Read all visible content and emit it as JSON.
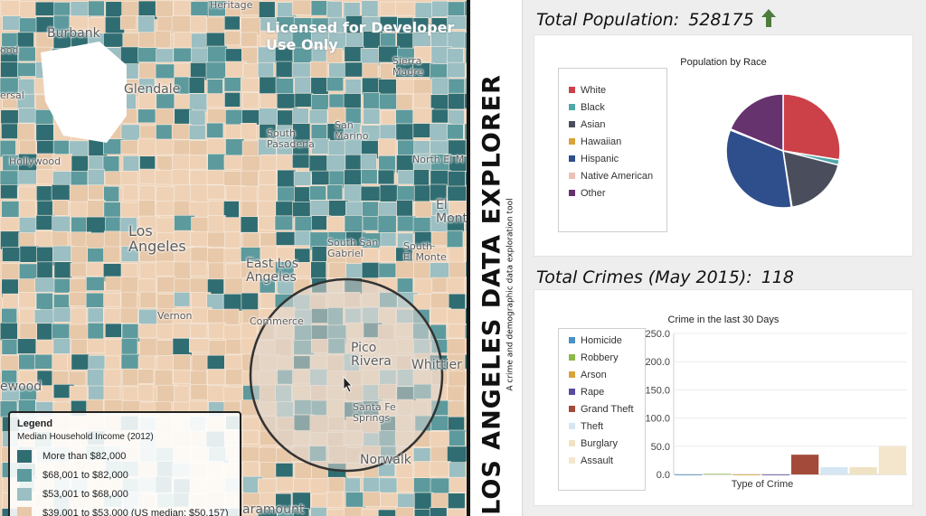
{
  "map": {
    "watermark": "Licensed for Developer\nUse Only",
    "places": [
      {
        "name": "Burbank",
        "text": "Burbank"
      },
      {
        "name": "Glendale",
        "text": "Glendale"
      },
      {
        "name": "Hollywood",
        "text": "Hollywood"
      },
      {
        "name": "Los Angeles",
        "text": "Los\nAngeles"
      },
      {
        "name": "Vernon",
        "text": "Vernon"
      },
      {
        "name": "East Los Angeles",
        "text": "East Los\nAngeles"
      },
      {
        "name": "Commerce",
        "text": "Commerce"
      },
      {
        "name": "Pico Rivera",
        "text": "Pico\nRivera"
      },
      {
        "name": "Whittier",
        "text": "Whittier"
      },
      {
        "name": "Santa Fe Springs",
        "text": "Santa Fe\nSprings"
      },
      {
        "name": "Norwalk",
        "text": "Norwalk"
      },
      {
        "name": "South Pasadena",
        "text": "South\nPasadena"
      },
      {
        "name": "San Marino",
        "text": "San\nMarino"
      },
      {
        "name": "Sierra Madre",
        "text": "Sierra\nMadre"
      },
      {
        "name": "North El Monte",
        "text": "North El M"
      },
      {
        "name": "El Monte",
        "text": "El\nMonte"
      },
      {
        "name": "South San Gabriel",
        "text": "South San\nGabriel"
      },
      {
        "name": "South El Monte",
        "text": "South\nEl Monte"
      },
      {
        "name": "Paramount",
        "text": "aramount"
      },
      {
        "name": "Inglewood",
        "text": "ewood"
      },
      {
        "name": "Wood",
        "text": "ood"
      },
      {
        "name": "Versal",
        "text": "ersal"
      },
      {
        "name": "Heritage",
        "text": "Heritage"
      }
    ],
    "legend": {
      "title": "Legend",
      "subtitle": "Median Household Income (2012)",
      "items": [
        {
          "label": "More than $82,000",
          "color": "#2f6d72"
        },
        {
          "label": "$68,001 to $82,000",
          "color": "#5c9a9d"
        },
        {
          "label": "$53,001 to $68,000",
          "color": "#9bbfc2"
        },
        {
          "label": "$39,001 to $53,000 (US median: $50,157)",
          "color": "#e7c8a9"
        }
      ]
    }
  },
  "app": {
    "title": "LOS ANGELES DATA EXPLORER",
    "subtitle": "A crime and demographic data exploration tool"
  },
  "population": {
    "heading": "Total Population:",
    "value": "528175",
    "arrow": "up-arrow-icon"
  },
  "crimes": {
    "heading": "Total Crimes (May 2015):",
    "value": "118"
  },
  "chart_data": [
    {
      "type": "pie",
      "title": "Population by Race",
      "legend_position": "left",
      "categories": [
        "White",
        "Black",
        "Asian",
        "Hawaiian",
        "Hispanic",
        "Native American",
        "Other"
      ],
      "values": [
        27.5,
        1.5,
        18.5,
        0.2,
        33.3,
        0.3,
        18.7
      ],
      "colors": [
        "#cc4048",
        "#4fa7a8",
        "#4a4e5c",
        "#d9a23b",
        "#2f4f8c",
        "#edc0b8",
        "#66336e"
      ]
    },
    {
      "type": "bar",
      "title": "Crime in the last 30 Days",
      "xlabel": "Type of Crime",
      "ylabel": "",
      "legend_position": "left",
      "ylim": [
        0,
        250
      ],
      "yticks": [
        "0.0",
        "50.0",
        "100.0",
        "150.0",
        "200.0",
        "250.0"
      ],
      "grid": true,
      "categories": [
        "Homicide",
        "Robbery",
        "Arson",
        "Rape",
        "Grand Theft",
        "Theft",
        "Burglary",
        "Assault"
      ],
      "values": [
        0,
        1,
        0,
        0,
        35,
        13,
        13,
        50
      ],
      "colors": [
        "#4a90c2",
        "#8cb84a",
        "#d9a23b",
        "#5a4ca0",
        "#a44a3a",
        "#d6e6f2",
        "#efe3c4",
        "#f3e6cc"
      ]
    }
  ]
}
